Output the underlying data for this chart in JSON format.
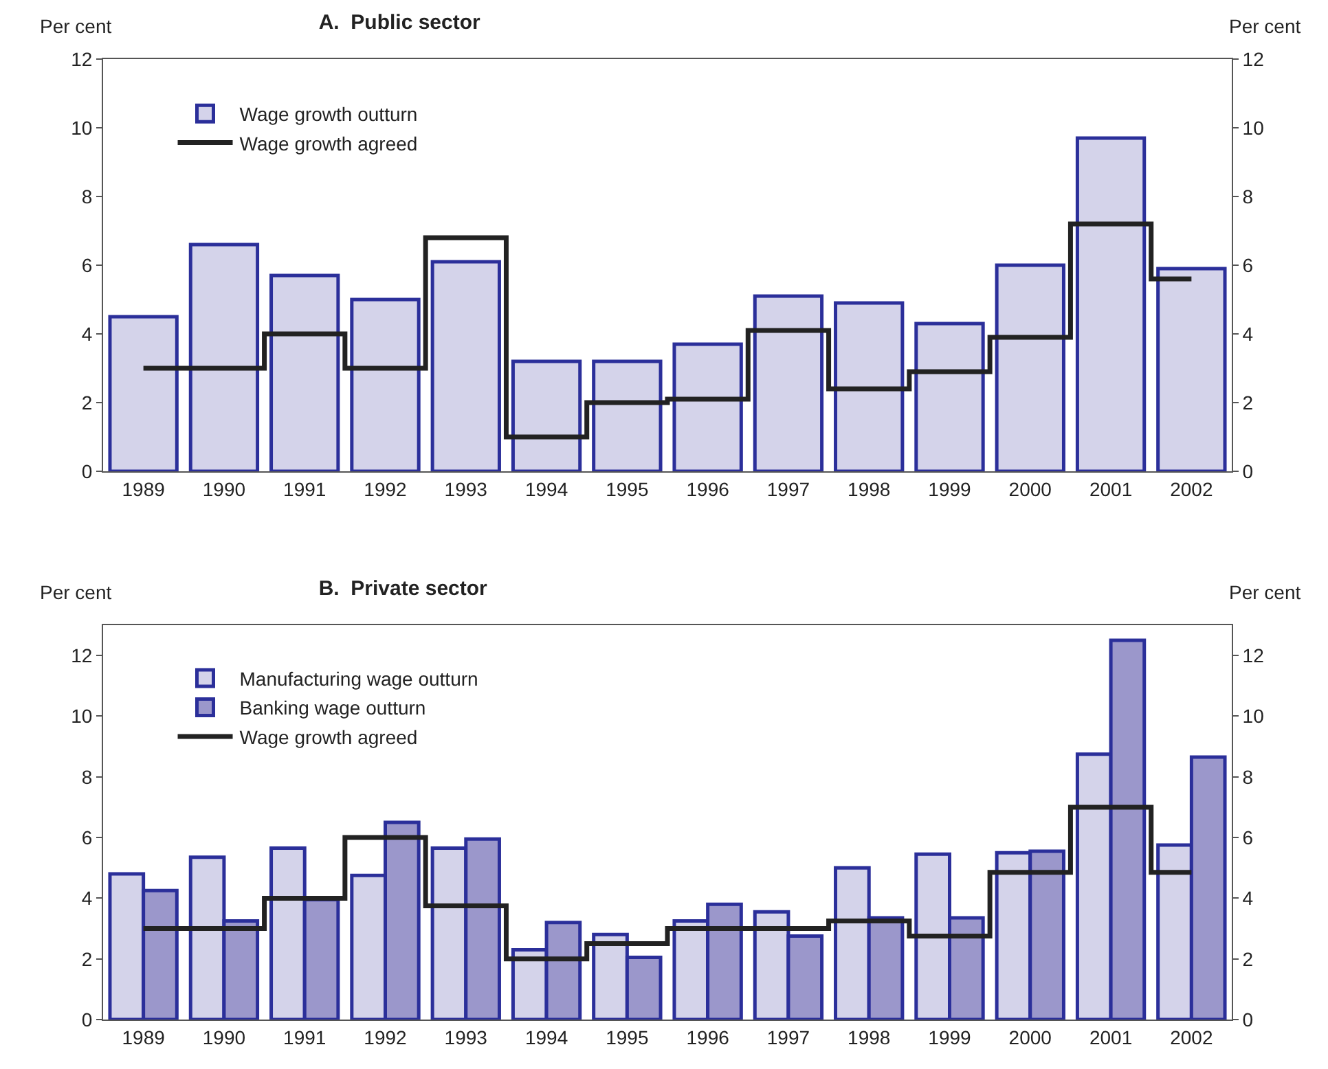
{
  "chart_data": [
    {
      "type": "bar",
      "title": "A.  Public sector",
      "ylabel": "Per cent",
      "y2label": "Per cent",
      "categories": [
        "1989",
        "1990",
        "1991",
        "1992",
        "1993",
        "1994",
        "1995",
        "1996",
        "1997",
        "1998",
        "1999",
        "2000",
        "2001",
        "2002"
      ],
      "series": [
        {
          "name": "Wage growth outturn",
          "color": "#d4d3ea",
          "values": [
            4.5,
            6.6,
            5.7,
            5.0,
            6.1,
            3.2,
            3.2,
            3.7,
            5.1,
            4.9,
            4.3,
            6.0,
            9.7,
            5.9
          ]
        },
        {
          "name": "Wage growth agreed",
          "type": "step",
          "color": "#222222",
          "values": [
            3,
            3,
            4,
            3,
            6.8,
            1,
            2,
            2.1,
            4.1,
            2.4,
            2.9,
            3.9,
            7.2,
            5.6
          ]
        }
      ],
      "ylim": [
        0,
        12
      ],
      "yticks": [
        0,
        2,
        4,
        6,
        8,
        10,
        12
      ],
      "y2lim": [
        0,
        12
      ],
      "y2ticks": [
        0,
        2,
        4,
        6,
        8,
        10,
        12
      ],
      "grid": false,
      "legend": "top left"
    },
    {
      "type": "bar",
      "title": "B.  Private sector",
      "ylabel": "Per cent",
      "y2label": "Per cent",
      "categories": [
        "1989",
        "1990",
        "1991",
        "1992",
        "1993",
        "1994",
        "1995",
        "1996",
        "1997",
        "1998",
        "1999",
        "2000",
        "2001",
        "2002"
      ],
      "series": [
        {
          "name": "Manufacturing wage outturn",
          "color": "#d4d3ea",
          "values": [
            4.8,
            5.35,
            5.65,
            4.75,
            5.65,
            2.3,
            2.8,
            3.25,
            3.55,
            5.0,
            5.45,
            5.5,
            8.75,
            5.75
          ]
        },
        {
          "name": "Banking wage outturn",
          "color": "#9b97cb",
          "values": [
            4.25,
            3.25,
            3.95,
            6.5,
            5.95,
            3.2,
            2.05,
            3.8,
            2.75,
            3.35,
            3.35,
            5.55,
            12.5,
            8.65
          ]
        },
        {
          "name": "Wage growth agreed",
          "type": "step",
          "color": "#222222",
          "values": [
            3,
            3,
            4,
            6,
            3.75,
            2,
            2.5,
            3,
            3,
            3.25,
            2.75,
            4.85,
            7,
            4.85
          ]
        }
      ],
      "ylim": [
        0,
        13
      ],
      "yticks": [
        0,
        2,
        4,
        6,
        8,
        10,
        12
      ],
      "y2lim": [
        0,
        13
      ],
      "y2ticks": [
        0,
        2,
        4,
        6,
        8,
        10,
        12
      ],
      "grid": false,
      "legend": "top left"
    }
  ]
}
